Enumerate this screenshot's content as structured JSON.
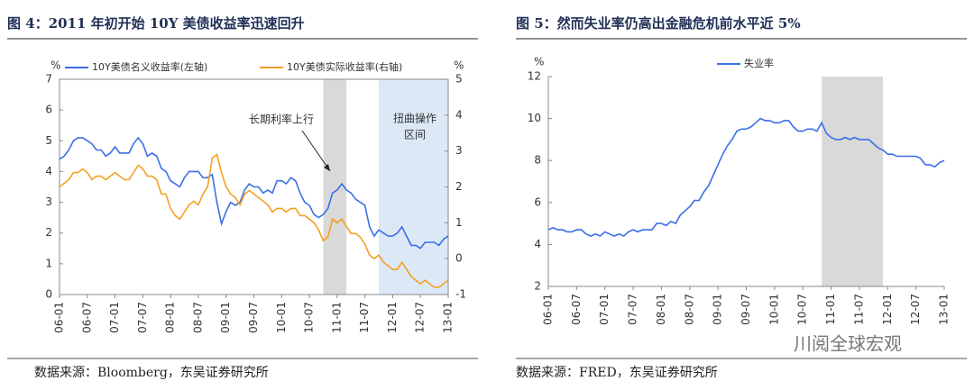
{
  "chart_data": [
    {
      "type": "line",
      "title": "图 4：2011 年初开始 10Y 美债收益率迅速回升",
      "source": "数据来源：Bloomberg，东吴证券研究所",
      "y_unit": "%",
      "y2_unit": "%",
      "categories": [
        "06-01",
        null,
        null,
        null,
        null,
        null,
        "06-07",
        null,
        null,
        null,
        null,
        null,
        "07-01",
        null,
        null,
        null,
        null,
        null,
        "07-07",
        null,
        null,
        null,
        null,
        null,
        "08-01",
        null,
        null,
        null,
        null,
        null,
        "08-07",
        null,
        null,
        null,
        null,
        null,
        "09-01",
        null,
        null,
        null,
        null,
        null,
        "09-07",
        null,
        null,
        null,
        null,
        null,
        "10-01",
        null,
        null,
        null,
        null,
        null,
        "10-07",
        null,
        null,
        null,
        null,
        null,
        "11-01",
        null,
        null,
        null,
        null,
        null,
        "11-07",
        null,
        null,
        null,
        null,
        null,
        "12-01",
        null,
        null,
        null,
        null,
        null,
        "12-07",
        null,
        null,
        null,
        null,
        null,
        "13-01"
      ],
      "series": [
        {
          "name": "10Y美债名义收益率(左轴)",
          "color": "#3b6fe8",
          "axis": "y",
          "values": [
            4.4,
            4.5,
            4.7,
            5.0,
            5.1,
            5.1,
            5.0,
            4.9,
            4.7,
            4.7,
            4.5,
            4.6,
            4.8,
            4.6,
            4.6,
            4.6,
            4.9,
            5.1,
            4.9,
            4.5,
            4.6,
            4.5,
            4.1,
            4.0,
            3.7,
            3.6,
            3.5,
            3.8,
            4.0,
            4.0,
            4.0,
            3.8,
            3.8,
            3.9,
            3.0,
            2.3,
            2.7,
            3.0,
            2.9,
            3.0,
            3.4,
            3.6,
            3.5,
            3.5,
            3.3,
            3.4,
            3.3,
            3.7,
            3.7,
            3.6,
            3.8,
            3.7,
            3.3,
            3.0,
            2.9,
            2.6,
            2.5,
            2.6,
            2.8,
            3.3,
            3.4,
            3.6,
            3.4,
            3.3,
            3.1,
            3.0,
            2.9,
            2.2,
            1.9,
            2.1,
            2.0,
            1.9,
            1.9,
            2.0,
            2.2,
            1.9,
            1.6,
            1.6,
            1.5,
            1.7,
            1.7,
            1.7,
            1.6,
            1.8,
            1.9
          ]
        },
        {
          "name": "10Y美债实际收益率(右轴)",
          "color": "#f5a020",
          "axis": "y2",
          "values": [
            2.0,
            2.1,
            2.2,
            2.4,
            2.4,
            2.5,
            2.4,
            2.2,
            2.3,
            2.3,
            2.2,
            2.3,
            2.4,
            2.3,
            2.2,
            2.2,
            2.4,
            2.6,
            2.5,
            2.3,
            2.3,
            2.2,
            1.8,
            1.8,
            1.4,
            1.2,
            1.1,
            1.3,
            1.5,
            1.6,
            1.5,
            1.8,
            2.0,
            2.8,
            2.9,
            2.4,
            2.0,
            1.8,
            1.7,
            1.5,
            1.8,
            1.9,
            1.8,
            1.7,
            1.6,
            1.5,
            1.3,
            1.4,
            1.4,
            1.3,
            1.4,
            1.4,
            1.2,
            1.2,
            1.1,
            1.0,
            0.8,
            0.5,
            0.6,
            1.1,
            1.0,
            1.1,
            0.9,
            0.7,
            0.7,
            0.6,
            0.4,
            0.1,
            0.0,
            0.1,
            -0.1,
            -0.2,
            -0.3,
            -0.3,
            -0.1,
            -0.3,
            -0.5,
            -0.6,
            -0.7,
            -0.6,
            -0.7,
            -0.8,
            -0.8,
            -0.7,
            -0.6
          ]
        }
      ],
      "ylim": [
        0,
        7
      ],
      "yticks": [
        0,
        1,
        2,
        3,
        4,
        5,
        6,
        7
      ],
      "y2lim": [
        -1,
        5
      ],
      "y2ticks": [
        -1,
        0,
        1,
        2,
        3,
        4,
        5
      ],
      "shaded": [
        {
          "from": 57,
          "to": 62,
          "color": "#d9d9d9"
        },
        {
          "from": 69,
          "to": 84,
          "color": "#dce8f6"
        }
      ],
      "annotations": [
        "长期利率上行",
        "扭曲操作",
        "区间"
      ]
    },
    {
      "type": "line",
      "title": "图 5：然而失业率仍高出金融危机前水平近 5%",
      "source": "数据来源：FRED，东吴证券研究所",
      "watermark": "川阅全球宏观",
      "y_unit": "%",
      "categories": [
        "06-01",
        null,
        null,
        null,
        null,
        null,
        "06-07",
        null,
        null,
        null,
        null,
        null,
        "07-01",
        null,
        null,
        null,
        null,
        null,
        "07-07",
        null,
        null,
        null,
        null,
        null,
        "08-01",
        null,
        null,
        null,
        null,
        null,
        "08-07",
        null,
        null,
        null,
        null,
        null,
        "09-01",
        null,
        null,
        null,
        null,
        null,
        "09-07",
        null,
        null,
        null,
        null,
        null,
        "10-01",
        null,
        null,
        null,
        null,
        null,
        "10-07",
        null,
        null,
        null,
        null,
        null,
        "11-01",
        null,
        null,
        null,
        null,
        null,
        "11-07",
        null,
        null,
        null,
        null,
        null,
        "12-01",
        null,
        null,
        null,
        null,
        null,
        "12-07",
        null,
        null,
        null,
        null,
        null,
        "13-01"
      ],
      "series": [
        {
          "name": "失业率",
          "color": "#3b6fe8",
          "axis": "y",
          "values": [
            4.7,
            4.8,
            4.7,
            4.7,
            4.6,
            4.6,
            4.7,
            4.7,
            4.5,
            4.4,
            4.5,
            4.4,
            4.6,
            4.5,
            4.4,
            4.5,
            4.4,
            4.6,
            4.7,
            4.6,
            4.7,
            4.7,
            4.7,
            5.0,
            5.0,
            4.9,
            5.1,
            5.0,
            5.4,
            5.6,
            5.8,
            6.1,
            6.1,
            6.5,
            6.8,
            7.3,
            7.8,
            8.3,
            8.7,
            9.0,
            9.4,
            9.5,
            9.5,
            9.6,
            9.8,
            10.0,
            9.9,
            9.9,
            9.8,
            9.8,
            9.9,
            9.9,
            9.6,
            9.4,
            9.4,
            9.5,
            9.5,
            9.4,
            9.8,
            9.3,
            9.1,
            9.0,
            9.0,
            9.1,
            9.0,
            9.1,
            9.0,
            9.0,
            9.0,
            8.8,
            8.6,
            8.5,
            8.3,
            8.3,
            8.2,
            8.2,
            8.2,
            8.2,
            8.2,
            8.1,
            7.8,
            7.8,
            7.7,
            7.9,
            8.0
          ]
        }
      ],
      "ylim": [
        2,
        12
      ],
      "yticks": [
        2,
        4,
        6,
        8,
        10,
        12
      ],
      "shaded": [
        {
          "from": 58,
          "to": 71,
          "color": "#d9d9d9"
        }
      ]
    }
  ]
}
